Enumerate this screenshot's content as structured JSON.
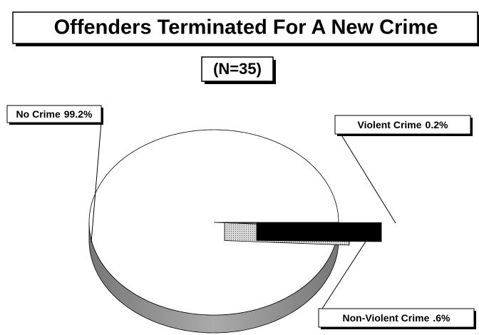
{
  "chart_data": {
    "type": "pie",
    "title": "Offenders Terminated For A New Crime",
    "subtitle": "(N=35)",
    "categories": [
      "No Crime",
      "Violent Crime",
      "Non-Violent Crime"
    ],
    "values": [
      99.2,
      0.2,
      0.6
    ],
    "value_labels": [
      "99.2%",
      "0.2%",
      ".6%"
    ],
    "colors": [
      "#ffffff",
      "#000000",
      "#b8b8b8"
    ]
  }
}
